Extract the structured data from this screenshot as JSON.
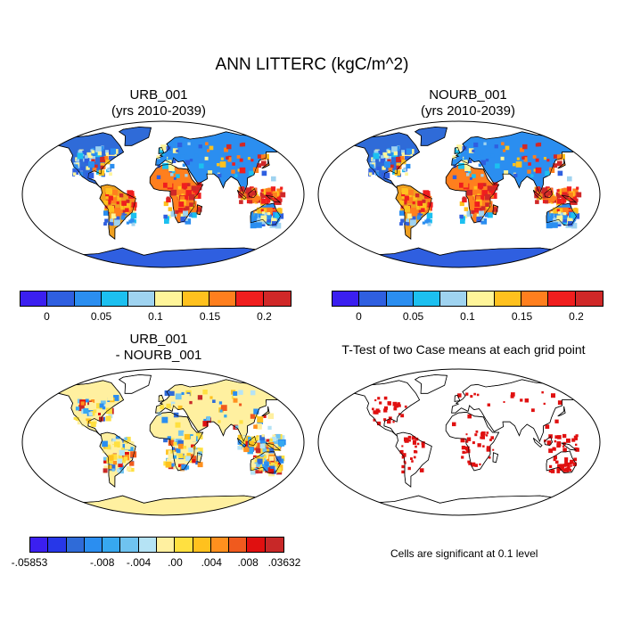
{
  "figure": {
    "title": "ANN LITTERC (kgC/m^2)"
  },
  "panels": [
    {
      "id": "urb",
      "title_line1": "URB_001",
      "title_line2": "(yrs 2010-2039)"
    },
    {
      "id": "nourb",
      "title_line1": "NOURB_001",
      "title_line2": "(yrs 2010-2039)"
    },
    {
      "id": "diff",
      "title_line1": "URB_001",
      "title_line2": "- NOURB_001"
    },
    {
      "id": "ttest",
      "title_line1": "T-Test of two Case means at each grid point"
    }
  ],
  "colorbar_abs": {
    "colors": [
      "#3b1ff0",
      "#2f5fe0",
      "#2b8ef0",
      "#1cc0f0",
      "#9fd3f0",
      "#fff59a",
      "#ffc11e",
      "#ff7f1e",
      "#f01e1e",
      "#d02828"
    ],
    "ticks": [
      "0",
      "0.05",
      "0.1",
      "0.15",
      "0.2"
    ]
  },
  "colorbar_diff": {
    "colors": [
      "#3b1ff0",
      "#2737e8",
      "#2f6bd8",
      "#2b8ef0",
      "#37a8f0",
      "#6fc3f0",
      "#b5e3f5",
      "#fff0a0",
      "#ffe040",
      "#ffc11e",
      "#ff901e",
      "#f05a1e",
      "#e01010",
      "#c82828"
    ],
    "ticks": [
      "-.05853",
      "-.008",
      "-.004",
      ".00",
      ".004",
      ".008",
      ".03632"
    ]
  },
  "note": "Cells are significant at 0.1 level"
}
